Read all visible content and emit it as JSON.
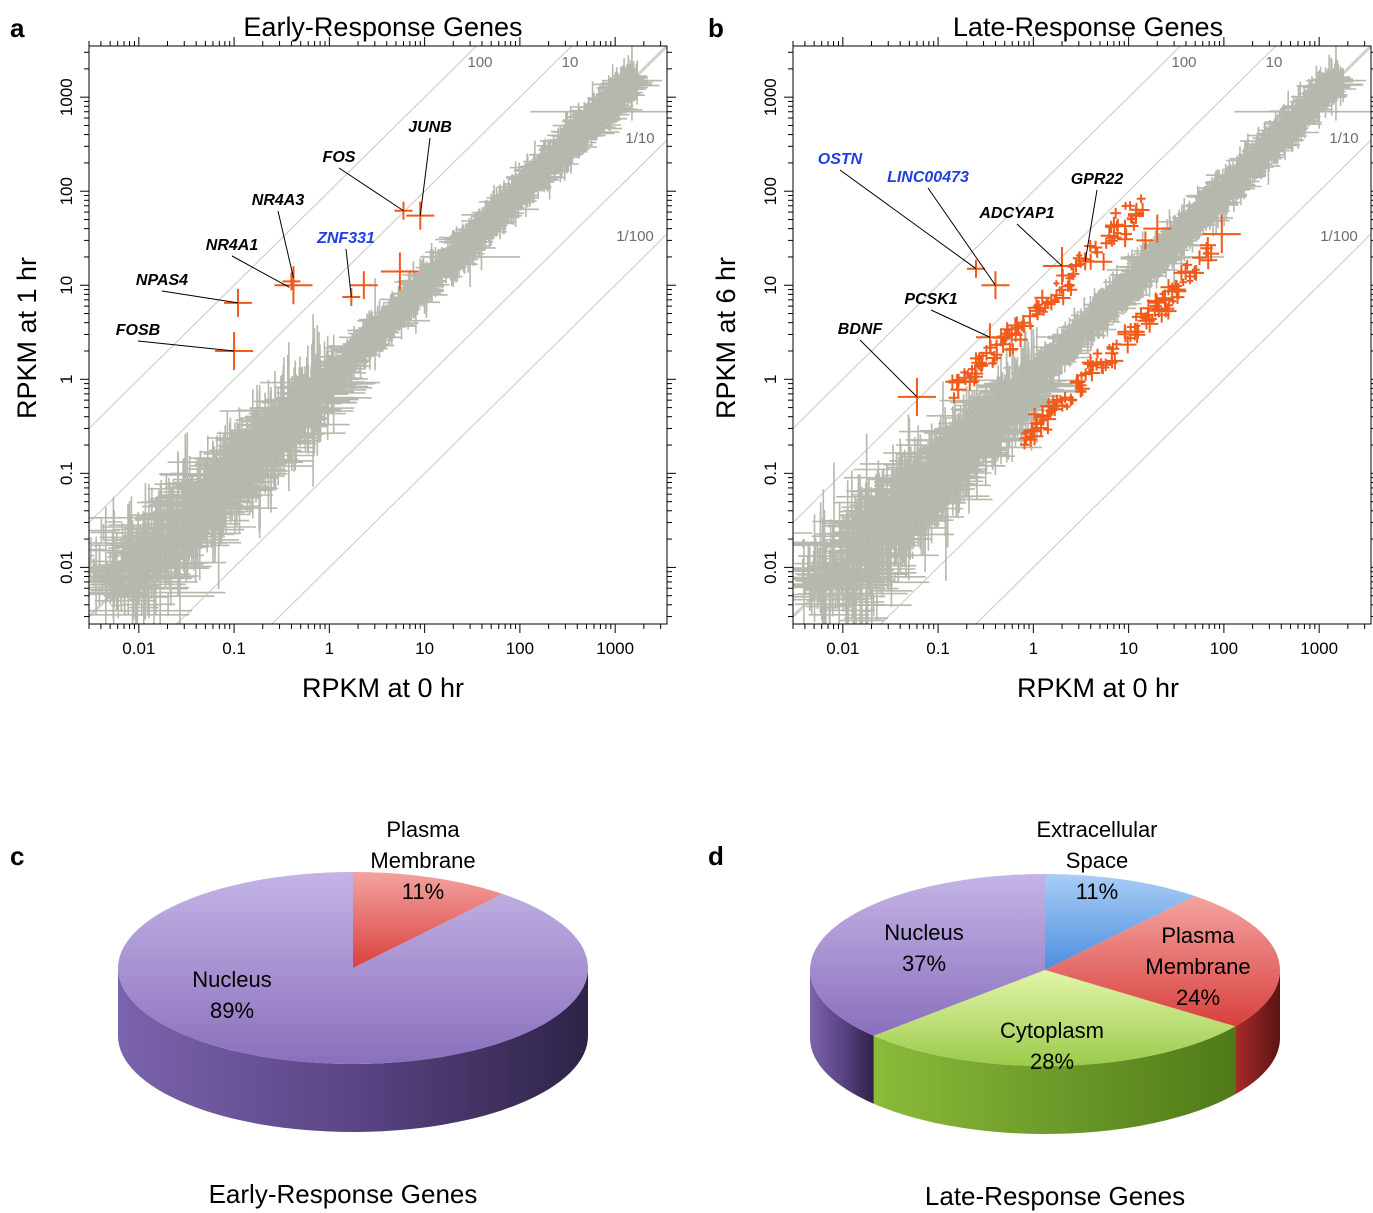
{
  "panels": {
    "a": "a",
    "b": "b",
    "c": "c",
    "d": "d"
  },
  "colors": {
    "background_points": "#b5b8ad",
    "highlight": "#f05a1a",
    "gene_black": "#000000",
    "gene_blue": "#1f3fe0",
    "guide_line": "#cfd1ca",
    "nucleus": "#9a84c8",
    "plasma_membrane": "#e4615f",
    "extracellular_space": "#6aa6e8",
    "cytoplasm": "#b6dc6a"
  },
  "chart_data": [
    {
      "type": "scatter",
      "id": "a",
      "title": "Early-Response Genes",
      "xlabel": "RPKM at 0 hr",
      "ylabel": "RPKM at 1 hr",
      "scale": "log",
      "xlim": [
        0.003,
        3500
      ],
      "ylim": [
        0.0025,
        3500
      ],
      "xticks": [
        "0.01",
        "0.1",
        "1",
        "10",
        "100",
        "1000"
      ],
      "yticks": [
        "0.01",
        "0.1",
        "1",
        "10",
        "100",
        "1000"
      ],
      "ratio_lines": [
        {
          "label": "100",
          "ratio": 100
        },
        {
          "label": "10",
          "ratio": 10
        },
        {
          "label": "1/10",
          "ratio": 0.1
        },
        {
          "label": "1/100",
          "ratio": 0.01
        }
      ],
      "highlighted": [
        {
          "x": 6,
          "y": 62
        },
        {
          "x": 9,
          "y": 55
        },
        {
          "x": 0.42,
          "y": 10
        },
        {
          "x": 0.4,
          "y": 11
        },
        {
          "x": 0.11,
          "y": 6.5
        },
        {
          "x": 0.1,
          "y": 2
        },
        {
          "x": 1.7,
          "y": 7.5
        },
        {
          "x": 2.3,
          "y": 10
        },
        {
          "x": 5.5,
          "y": 14
        }
      ],
      "annotations": [
        {
          "gene": "JUNB",
          "x": 9,
          "y": 55,
          "color": "black"
        },
        {
          "gene": "FOS",
          "x": 6,
          "y": 62,
          "color": "black"
        },
        {
          "gene": "NR4A3",
          "x": 0.42,
          "y": 12,
          "color": "black"
        },
        {
          "gene": "NR4A1",
          "x": 0.38,
          "y": 9.5,
          "color": "black"
        },
        {
          "gene": "ZNF331",
          "x": 1.7,
          "y": 7.5,
          "color": "blue"
        },
        {
          "gene": "NPAS4",
          "x": 0.11,
          "y": 6.5,
          "color": "black"
        },
        {
          "gene": "FOSB",
          "x": 0.1,
          "y": 2,
          "color": "black"
        }
      ]
    },
    {
      "type": "scatter",
      "id": "b",
      "title": "Late-Response Genes",
      "xlabel": "RPKM at 0 hr",
      "ylabel": "RPKM at 6 hr",
      "scale": "log",
      "xlim": [
        0.003,
        3500
      ],
      "ylim": [
        0.0025,
        3500
      ],
      "xticks": [
        "0.01",
        "0.1",
        "1",
        "10",
        "100",
        "1000"
      ],
      "yticks": [
        "0.01",
        "0.1",
        "1",
        "10",
        "100",
        "1000"
      ],
      "ratio_lines": [
        {
          "label": "100",
          "ratio": 100
        },
        {
          "label": "10",
          "ratio": 10
        },
        {
          "label": "1/10",
          "ratio": 0.1
        },
        {
          "label": "1/100",
          "ratio": 0.01
        }
      ],
      "highlighted": [
        {
          "x": 0.25,
          "y": 15
        },
        {
          "x": 0.4,
          "y": 10
        },
        {
          "x": 2,
          "y": 16
        },
        {
          "x": 3.5,
          "y": 18
        },
        {
          "x": 0.35,
          "y": 2.8
        },
        {
          "x": 0.06,
          "y": 0.65
        },
        {
          "x": 15,
          "y": 30
        },
        {
          "x": 20,
          "y": 40
        },
        {
          "x": 95,
          "y": 35
        },
        {
          "x": 32,
          "y": 9
        }
      ],
      "annotations": [
        {
          "gene": "OSTN",
          "x": 0.25,
          "y": 15,
          "color": "blue"
        },
        {
          "gene": "LINC00473",
          "x": 0.4,
          "y": 10,
          "color": "blue"
        },
        {
          "gene": "GPR22",
          "x": 3.5,
          "y": 18,
          "color": "black"
        },
        {
          "gene": "ADCYAP1",
          "x": 2,
          "y": 16,
          "color": "black"
        },
        {
          "gene": "PCSK1",
          "x": 0.35,
          "y": 2.8,
          "color": "black"
        },
        {
          "gene": "BDNF",
          "x": 0.06,
          "y": 0.65,
          "color": "black"
        }
      ]
    },
    {
      "type": "pie",
      "id": "c",
      "title": "Early-Response Genes",
      "slices": [
        {
          "label": "Plasma Membrane",
          "label_lines": [
            "Plasma",
            "Membrane"
          ],
          "pct_text": "11%",
          "value": 11,
          "color": "plasma_membrane"
        },
        {
          "label": "Nucleus",
          "label_lines": [
            "Nucleus"
          ],
          "pct_text": "89%",
          "value": 89,
          "color": "nucleus"
        }
      ]
    },
    {
      "type": "pie",
      "id": "d",
      "title": "Late-Response Genes",
      "slices": [
        {
          "label": "Extracellular Space",
          "label_lines": [
            "Extracellular",
            "Space"
          ],
          "pct_text": "11%",
          "value": 11,
          "color": "extracellular_space"
        },
        {
          "label": "Plasma Membrane",
          "label_lines": [
            "Plasma",
            "Membrane"
          ],
          "pct_text": "24%",
          "value": 24,
          "color": "plasma_membrane"
        },
        {
          "label": "Cytoplasm",
          "label_lines": [
            "Cytoplasm"
          ],
          "pct_text": "28%",
          "value": 28,
          "color": "cytoplasm"
        },
        {
          "label": "Nucleus",
          "label_lines": [
            "Nucleus"
          ],
          "pct_text": "37%",
          "value": 37,
          "color": "nucleus"
        }
      ]
    }
  ]
}
